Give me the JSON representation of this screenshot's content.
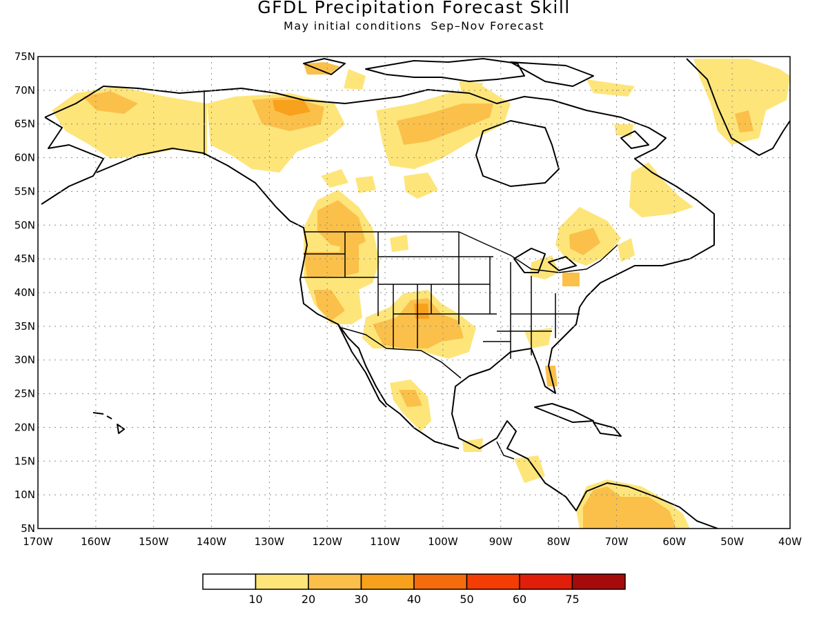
{
  "title": "GFDL Precipitation Forecast Skill",
  "subtitle": "May initial conditions  Sep–Nov Forecast",
  "axes": {
    "lat_labels": [
      "75N",
      "70N",
      "65N",
      "60N",
      "55N",
      "50N",
      "45N",
      "40N",
      "35N",
      "30N",
      "25N",
      "20N",
      "15N",
      "10N",
      "5N"
    ],
    "lon_labels": [
      "170W",
      "160W",
      "150W",
      "140W",
      "130W",
      "120W",
      "110W",
      "100W",
      "90W",
      "80W",
      "70W",
      "60W",
      "50W",
      "40W"
    ],
    "lat_range": [
      5,
      75
    ],
    "lon_range": [
      -170,
      -40
    ],
    "grid": "dotted"
  },
  "colorbar": {
    "ticks": [
      "10",
      "20",
      "30",
      "40",
      "50",
      "60",
      "75"
    ],
    "colors": [
      "#ffffff",
      "#fde57a",
      "#fbc04a",
      "#f8a11d",
      "#f56c0c",
      "#f43c05",
      "#e11e09",
      "#a50b0b"
    ]
  }
}
